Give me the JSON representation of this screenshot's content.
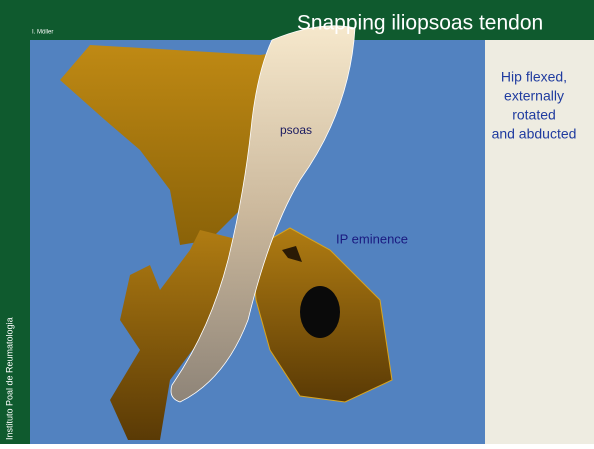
{
  "header": {
    "author": "I. Möller",
    "title": "Snapping iliopsoas tendon"
  },
  "side_note": {
    "lines": [
      "Hip flexed,",
      "externally",
      "rotated",
      "and abducted"
    ]
  },
  "labels": {
    "psoas": "psoas",
    "ip_eminence": "IP eminence"
  },
  "footer": {
    "institute": "Instituto Poal de Reumatologia"
  }
}
